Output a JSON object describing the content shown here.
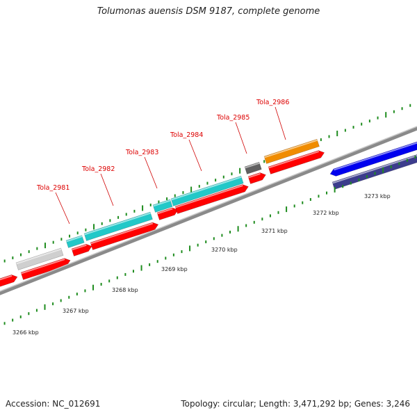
{
  "title": "Tolumonas auensis DSM 9187, complete genome",
  "footer": {
    "accession": "Accession: NC_012691",
    "summary": "Topology: circular; Length: 3,471,292 bp; Genes: 3,246"
  },
  "axis_ticks": [
    {
      "kb": 3266,
      "label": "3266 kbp"
    },
    {
      "kb": 3267,
      "label": "3267 kbp"
    },
    {
      "kb": 3268,
      "label": "3268 kbp"
    },
    {
      "kb": 3269,
      "label": "3269 kbp"
    },
    {
      "kb": 3270,
      "label": "3270 kbp"
    },
    {
      "kb": 3271,
      "label": "3271 kbp"
    },
    {
      "kb": 3272,
      "label": "3272 kbp"
    },
    {
      "kb": 3273,
      "label": "3273 kbp"
    }
  ],
  "gene_labels": [
    "Tola_2981",
    "Tola_2982",
    "Tola_2983",
    "Tola_2984",
    "Tola_2985",
    "Tola_2986"
  ],
  "tracks": {
    "gene_colors": {
      "cds": "#ff0000",
      "blue": "#0000ee",
      "navy": "#3c3c8c"
    },
    "feature_colors": {
      "cyan": "#22c8c8",
      "orange": "#f08c00",
      "gray": "#cfcfcf",
      "dark": "#606060"
    }
  }
}
